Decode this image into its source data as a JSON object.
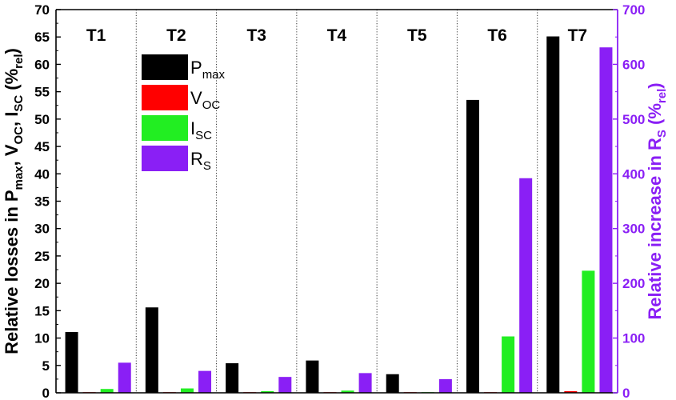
{
  "chart_data": {
    "type": "bar",
    "categories": [
      "T1",
      "T2",
      "T3",
      "T4",
      "T5",
      "T6",
      "T7"
    ],
    "series": [
      {
        "name": "P",
        "name_sub": "max",
        "axis": "left",
        "color": "#000000",
        "values": [
          11.1,
          15.6,
          5.4,
          5.9,
          3.4,
          53.5,
          65.1
        ]
      },
      {
        "name": "V",
        "name_sub": "OC",
        "axis": "left",
        "color": "#ff0000",
        "values": [
          0.1,
          0.1,
          0.1,
          0.1,
          0.1,
          0.1,
          0.3
        ]
      },
      {
        "name": "I",
        "name_sub": "SC",
        "axis": "left",
        "color": "#22ee22",
        "values": [
          0.7,
          0.8,
          0.3,
          0.4,
          0.1,
          10.3,
          22.3
        ]
      },
      {
        "name": "R",
        "name_sub": "S",
        "axis": "right",
        "color": "#8a1ff5",
        "values": [
          55,
          40,
          29,
          36,
          25,
          392,
          631
        ]
      }
    ],
    "left_axis": {
      "label_parts": [
        {
          "t": "Relative losses in P",
          "sub": false
        },
        {
          "t": "max",
          "sub": true
        },
        {
          "t": ", V",
          "sub": false
        },
        {
          "t": "OC",
          "sub": true
        },
        {
          "t": ", I",
          "sub": false
        },
        {
          "t": "SC",
          "sub": true
        },
        {
          "t": " (%",
          "sub": false
        },
        {
          "t": "rel",
          "sub": true
        },
        {
          "t": ")",
          "sub": false
        }
      ],
      "ylim": [
        0,
        70
      ],
      "ticks": [
        0,
        5,
        10,
        15,
        20,
        25,
        30,
        35,
        40,
        45,
        50,
        55,
        60,
        65,
        70
      ],
      "color": "#000000"
    },
    "right_axis": {
      "label_parts": [
        {
          "t": "Relative increase in R",
          "sub": false
        },
        {
          "t": "S",
          "sub": true
        },
        {
          "t": " (%",
          "sub": false
        },
        {
          "t": "rel",
          "sub": true
        },
        {
          "t": ")",
          "sub": false
        }
      ],
      "ylim": [
        0,
        700
      ],
      "ticks": [
        0,
        100,
        200,
        300,
        400,
        500,
        600,
        700
      ],
      "color": "#8a1ff5"
    },
    "legend_position": "upper-left, inside",
    "group_separators": "dotted vertical lines",
    "grid": false
  }
}
